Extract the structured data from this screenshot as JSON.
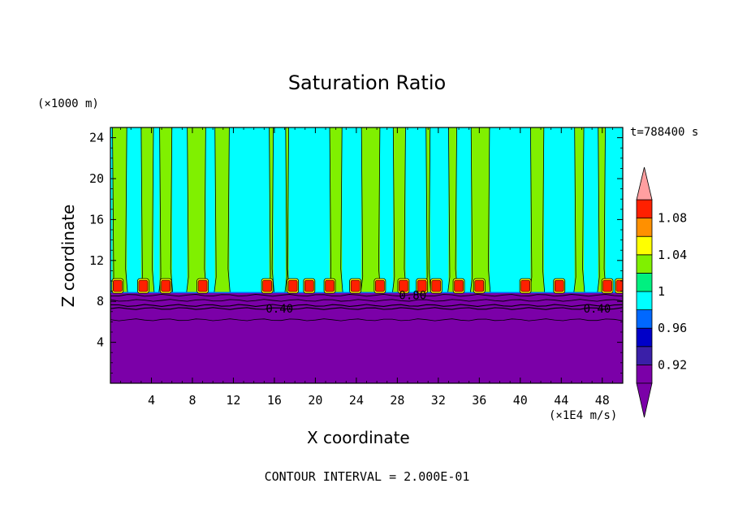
{
  "chart_data": {
    "type": "heatmap",
    "title": "Saturation Ratio",
    "xlabel": "X coordinate",
    "ylabel": "Z coordinate",
    "x_unit": "(×1E4 m/s)",
    "z_unit": "(×1000 m)",
    "time_label": "t=788400 s",
    "footer": "CONTOUR INTERVAL = 2.000E-01",
    "xlim": [
      0,
      50
    ],
    "ylim": [
      0,
      25
    ],
    "x_ticks": [
      4,
      8,
      12,
      16,
      20,
      24,
      28,
      32,
      36,
      40,
      44,
      48
    ],
    "y_ticks": [
      4,
      8,
      12,
      16,
      20,
      24
    ],
    "contour_labels": [
      {
        "text": "0.40",
        "x": 16.5,
        "z": 7.3
      },
      {
        "text": "0.80",
        "x": 29.5,
        "z": 8.6
      },
      {
        "text": "0.40",
        "x": 47.5,
        "z": 7.3
      }
    ],
    "colorbar": {
      "levels": [
        0.9,
        0.92,
        0.94,
        0.96,
        0.98,
        1.0,
        1.02,
        1.04,
        1.06,
        1.08,
        1.1
      ],
      "labels": [
        "0.92",
        "0.96",
        "1",
        "1.04",
        "1.08"
      ],
      "label_levels": [
        0.92,
        0.96,
        1.0,
        1.04,
        1.08
      ],
      "colors": [
        "#7b00a8",
        "#3a1fa8",
        "#0000c8",
        "#0068ff",
        "#00ffff",
        "#00f080",
        "#80f000",
        "#ffff00",
        "#ff9000",
        "#ff2000",
        "#ff9fa0"
      ],
      "extend": "both"
    },
    "field": {
      "dry_layer_top_z": 8.8,
      "dry_value_max": 0.9,
      "upper_layer_values": [
        0.98,
        1.02
      ],
      "cap_level_value": 1.09,
      "cap_x_positions": [
        0.7,
        3.2,
        5.4,
        9.0,
        15.3,
        17.8,
        19.4,
        21.4,
        23.9,
        26.3,
        28.6,
        30.4,
        31.8,
        34.0,
        36.0,
        40.5,
        43.8,
        48.5,
        49.8
      ],
      "column_x_edges": [
        0.2,
        1.6,
        3.0,
        4.2,
        4.8,
        6.0,
        7.5,
        9.3,
        10.2,
        11.6,
        15.5,
        15.9,
        17.1,
        17.4,
        21.4,
        22.6,
        24.5,
        26.3,
        27.6,
        28.8,
        30.8,
        31.2,
        33.0,
        33.8,
        35.2,
        37.0,
        41.0,
        42.3,
        45.3,
        46.2,
        47.6,
        48.3
      ]
    }
  }
}
